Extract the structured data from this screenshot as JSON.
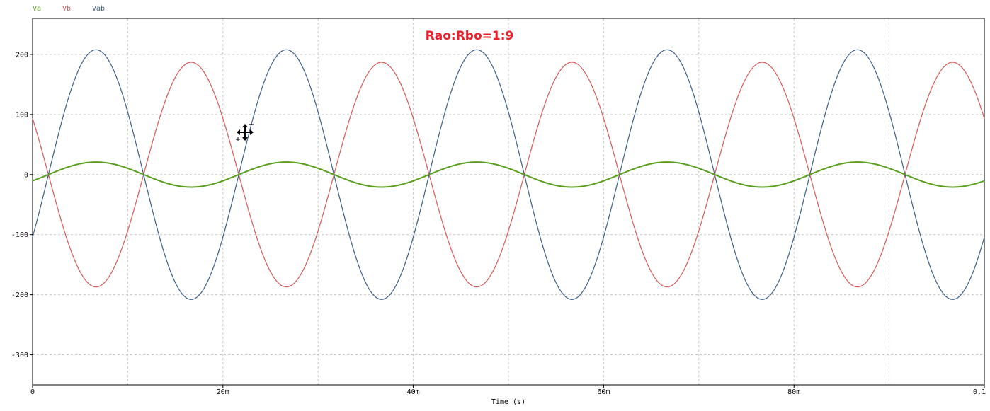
{
  "chart_data": {
    "type": "line",
    "title": "",
    "xlabel": "Time (s)",
    "ylabel": "",
    "xlim": [
      0,
      0.1
    ],
    "ylim": [
      -350,
      260
    ],
    "grid": true,
    "legend": "top-left",
    "x_ticks": [
      {
        "value": 0,
        "label": "0"
      },
      {
        "value": 0.02,
        "label": "20m"
      },
      {
        "value": 0.04,
        "label": "40m"
      },
      {
        "value": 0.06,
        "label": "60m"
      },
      {
        "value": 0.08,
        "label": "80m"
      },
      {
        "value": 0.1,
        "label": "0.1"
      }
    ],
    "y_ticks": [
      {
        "value": 200,
        "label": "200"
      },
      {
        "value": 100,
        "label": "100"
      },
      {
        "value": 0,
        "label": "0"
      },
      {
        "value": -100,
        "label": "-100"
      },
      {
        "value": -200,
        "label": "-200"
      },
      {
        "value": -300,
        "label": "-300"
      }
    ],
    "series": [
      {
        "name": "Va",
        "color": "#5a9e1e",
        "amplitude": 20.8,
        "frequency": 50,
        "phase_deg": -30
      },
      {
        "name": "Vb",
        "color": "#d65858",
        "amplitude": 187,
        "frequency": 50,
        "phase_deg": 150
      },
      {
        "name": "Vab",
        "color": "#3e5f8a",
        "amplitude": 207.8,
        "frequency": 50,
        "phase_deg": -30
      }
    ],
    "annotations": [
      {
        "text": "Rao:Rbo=1:9",
        "color": "#e8202a"
      }
    ]
  }
}
